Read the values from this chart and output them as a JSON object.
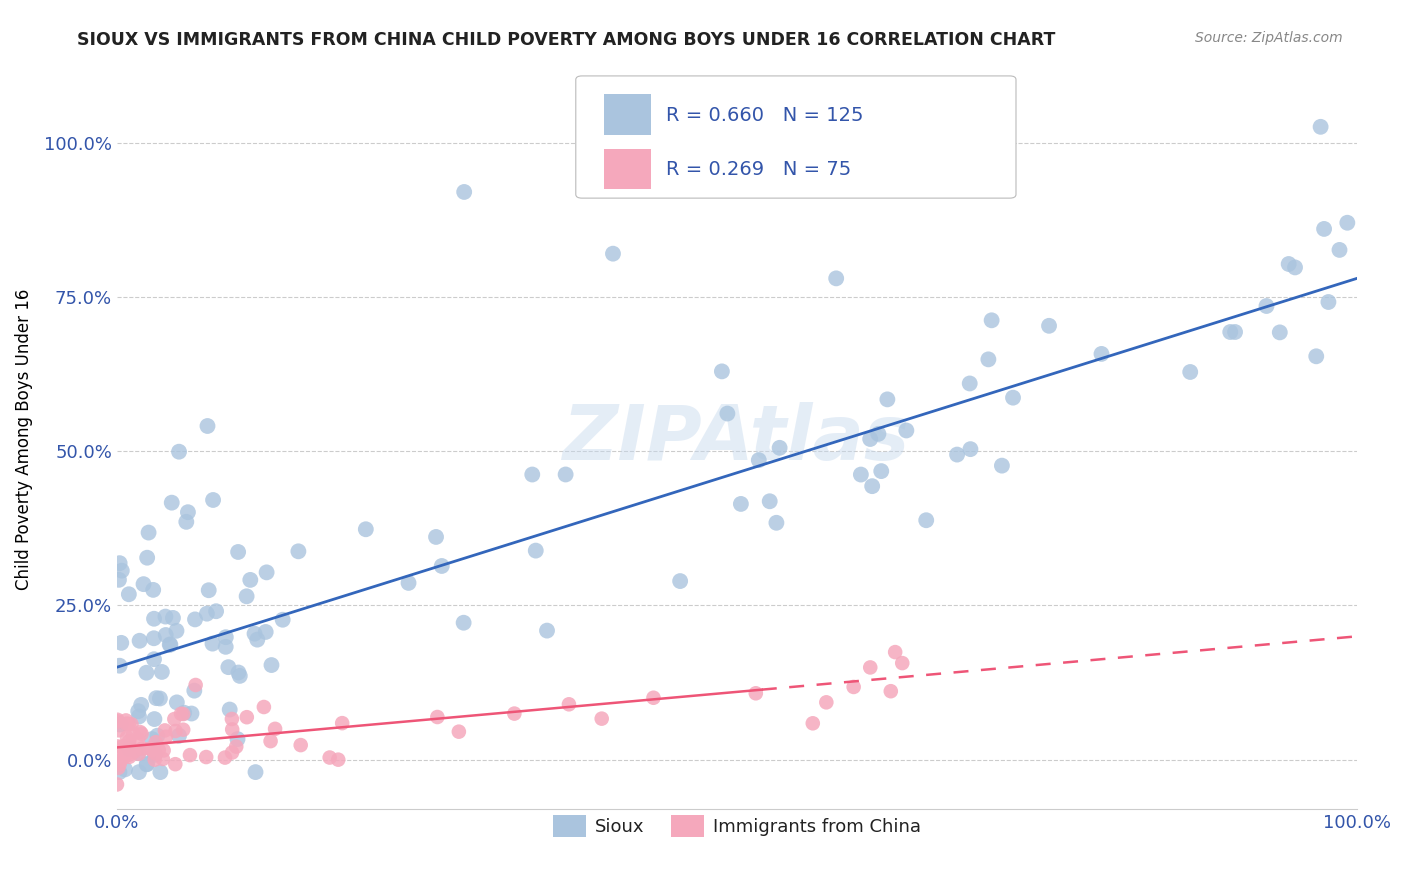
{
  "title": "SIOUX VS IMMIGRANTS FROM CHINA CHILD POVERTY AMONG BOYS UNDER 16 CORRELATION CHART",
  "source": "Source: ZipAtlas.com",
  "ylabel": "Child Poverty Among Boys Under 16",
  "xlim": [
    0.0,
    1.0
  ],
  "ylim": [
    -0.08,
    1.12
  ],
  "yticks": [
    0.0,
    0.25,
    0.5,
    0.75,
    1.0
  ],
  "ytick_labels": [
    "0.0%",
    "25.0%",
    "50.0%",
    "75.0%",
    "100.0%"
  ],
  "xtick_labels": [
    "0.0%",
    "100.0%"
  ],
  "watermark": "ZIPAtlas",
  "sioux_R": 0.66,
  "sioux_N": 125,
  "china_R": 0.269,
  "china_N": 75,
  "sioux_color": "#aac4de",
  "china_color": "#f5a8bc",
  "sioux_line_color": "#3366bb",
  "china_line_solid_color": "#ee5577",
  "china_line_dash_color": "#ee5577",
  "background_color": "#ffffff",
  "grid_color": "#cccccc",
  "title_color": "#222222",
  "axis_label_color": "#3355aa",
  "tick_label_color": "#3355aa",
  "legend_R_color": "#3355aa",
  "legend_N_color": "#3355aa",
  "legend_label_color": "#222222"
}
